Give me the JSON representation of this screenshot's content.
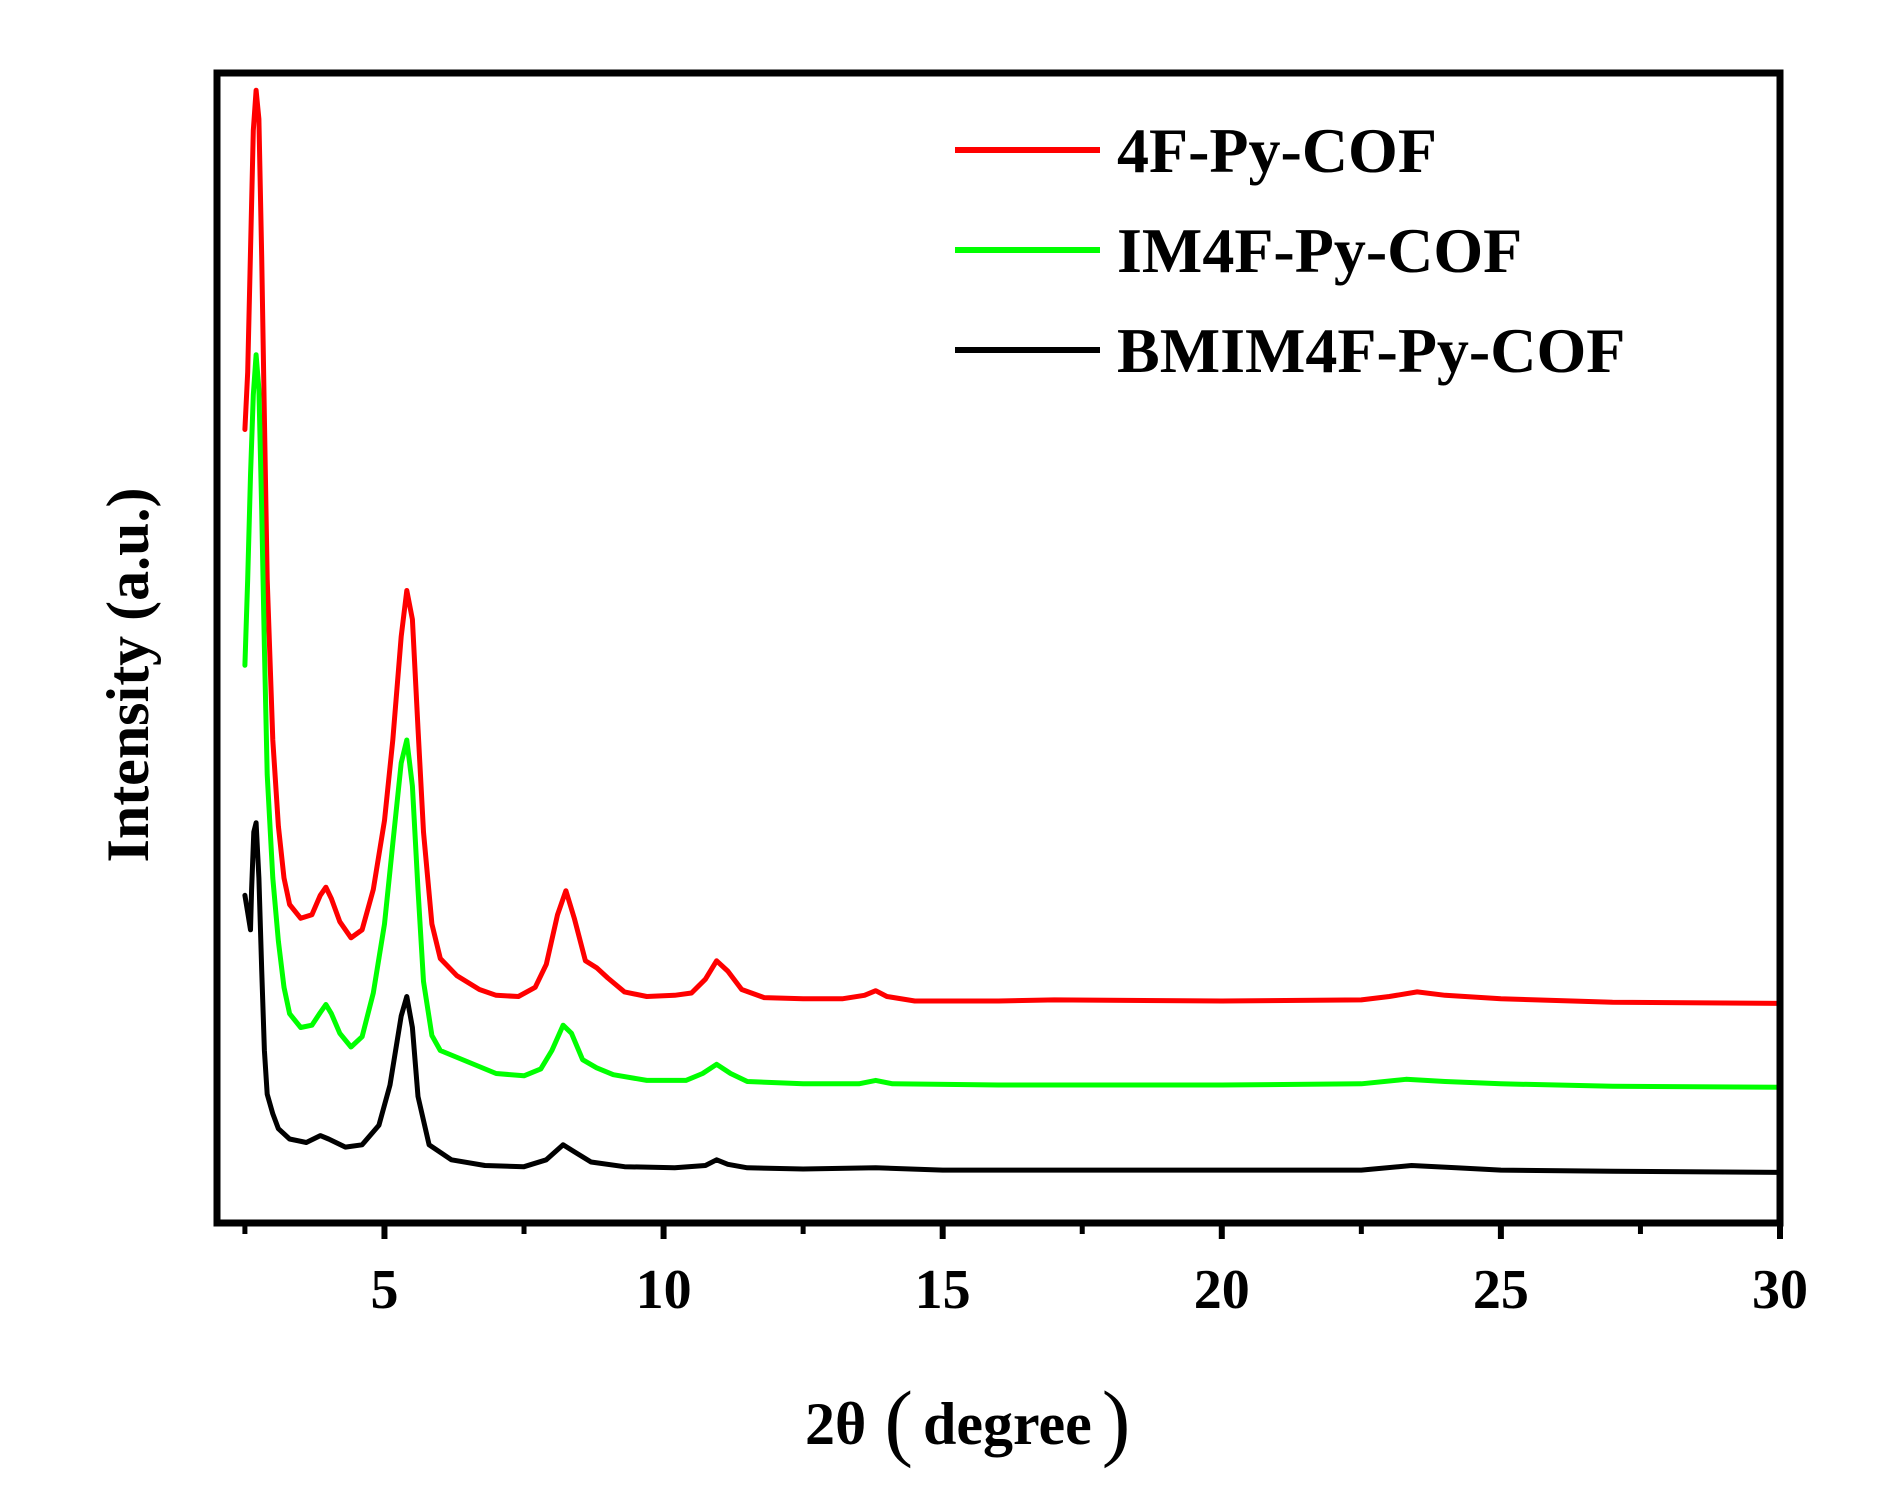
{
  "chart_data": {
    "type": "line",
    "xlabel": "2θ",
    "xlabel_unit": "degree",
    "ylabel": "Intensity (a.u.)",
    "xlim": [
      2,
      30
    ],
    "ylim": [
      0,
      1
    ],
    "x_ticks": [
      5,
      10,
      15,
      20,
      25,
      30
    ],
    "x_minor_ticks": [
      2.5,
      7.5,
      12.5,
      17.5,
      22.5,
      27.5
    ],
    "y_ticks_shown": false,
    "legend_position": "top-right",
    "grid": false,
    "series": [
      {
        "name": "4F-Py-COF",
        "color": "#ff0000",
        "points": [
          [
            2.5,
            0.69
          ],
          [
            2.55,
            0.74
          ],
          [
            2.6,
            0.845
          ],
          [
            2.65,
            0.95
          ],
          [
            2.7,
            0.985
          ],
          [
            2.75,
            0.96
          ],
          [
            2.8,
            0.84
          ],
          [
            2.85,
            0.7
          ],
          [
            2.9,
            0.56
          ],
          [
            3.0,
            0.42
          ],
          [
            3.1,
            0.345
          ],
          [
            3.2,
            0.3
          ],
          [
            3.3,
            0.277
          ],
          [
            3.5,
            0.265
          ],
          [
            3.7,
            0.268
          ],
          [
            3.85,
            0.285
          ],
          [
            3.95,
            0.292
          ],
          [
            4.05,
            0.282
          ],
          [
            4.2,
            0.262
          ],
          [
            4.4,
            0.248
          ],
          [
            4.6,
            0.255
          ],
          [
            4.8,
            0.29
          ],
          [
            5.0,
            0.35
          ],
          [
            5.15,
            0.42
          ],
          [
            5.3,
            0.51
          ],
          [
            5.4,
            0.55
          ],
          [
            5.5,
            0.525
          ],
          [
            5.6,
            0.43
          ],
          [
            5.7,
            0.34
          ],
          [
            5.85,
            0.26
          ],
          [
            6.0,
            0.23
          ],
          [
            6.3,
            0.215
          ],
          [
            6.7,
            0.203
          ],
          [
            7.0,
            0.198
          ],
          [
            7.4,
            0.197
          ],
          [
            7.7,
            0.205
          ],
          [
            7.9,
            0.225
          ],
          [
            8.1,
            0.268
          ],
          [
            8.25,
            0.289
          ],
          [
            8.4,
            0.265
          ],
          [
            8.6,
            0.228
          ],
          [
            8.8,
            0.222
          ],
          [
            9.0,
            0.213
          ],
          [
            9.3,
            0.201
          ],
          [
            9.7,
            0.197
          ],
          [
            10.2,
            0.198
          ],
          [
            10.5,
            0.2
          ],
          [
            10.75,
            0.212
          ],
          [
            10.95,
            0.228
          ],
          [
            11.15,
            0.219
          ],
          [
            11.4,
            0.203
          ],
          [
            11.8,
            0.196
          ],
          [
            12.5,
            0.195
          ],
          [
            13.2,
            0.195
          ],
          [
            13.6,
            0.198
          ],
          [
            13.8,
            0.202
          ],
          [
            14.0,
            0.197
          ],
          [
            14.5,
            0.193
          ],
          [
            16.0,
            0.193
          ],
          [
            17.0,
            0.194
          ],
          [
            20.0,
            0.193
          ],
          [
            22.5,
            0.194
          ],
          [
            23.0,
            0.197
          ],
          [
            23.5,
            0.201
          ],
          [
            24.0,
            0.198
          ],
          [
            25.0,
            0.195
          ],
          [
            27.0,
            0.192
          ],
          [
            30.0,
            0.191
          ]
        ]
      },
      {
        "name": "IM4F-Py-COF",
        "color": "#00ff00",
        "points": [
          [
            2.5,
            0.485
          ],
          [
            2.55,
            0.56
          ],
          [
            2.6,
            0.65
          ],
          [
            2.65,
            0.72
          ],
          [
            2.7,
            0.755
          ],
          [
            2.75,
            0.725
          ],
          [
            2.8,
            0.62
          ],
          [
            2.85,
            0.5
          ],
          [
            2.9,
            0.39
          ],
          [
            3.0,
            0.3
          ],
          [
            3.1,
            0.245
          ],
          [
            3.2,
            0.205
          ],
          [
            3.3,
            0.182
          ],
          [
            3.5,
            0.17
          ],
          [
            3.7,
            0.172
          ],
          [
            3.85,
            0.183
          ],
          [
            3.95,
            0.19
          ],
          [
            4.05,
            0.182
          ],
          [
            4.2,
            0.165
          ],
          [
            4.4,
            0.153
          ],
          [
            4.6,
            0.162
          ],
          [
            4.8,
            0.2
          ],
          [
            5.0,
            0.26
          ],
          [
            5.15,
            0.33
          ],
          [
            5.3,
            0.4
          ],
          [
            5.4,
            0.42
          ],
          [
            5.5,
            0.38
          ],
          [
            5.6,
            0.29
          ],
          [
            5.7,
            0.21
          ],
          [
            5.85,
            0.163
          ],
          [
            6.0,
            0.15
          ],
          [
            6.5,
            0.14
          ],
          [
            7.0,
            0.13
          ],
          [
            7.5,
            0.128
          ],
          [
            7.8,
            0.134
          ],
          [
            8.0,
            0.15
          ],
          [
            8.2,
            0.172
          ],
          [
            8.35,
            0.165
          ],
          [
            8.55,
            0.142
          ],
          [
            8.8,
            0.135
          ],
          [
            9.1,
            0.129
          ],
          [
            9.7,
            0.124
          ],
          [
            10.4,
            0.124
          ],
          [
            10.7,
            0.13
          ],
          [
            10.95,
            0.138
          ],
          [
            11.2,
            0.13
          ],
          [
            11.5,
            0.123
          ],
          [
            12.5,
            0.121
          ],
          [
            13.5,
            0.121
          ],
          [
            13.8,
            0.124
          ],
          [
            14.1,
            0.121
          ],
          [
            16.0,
            0.12
          ],
          [
            20.0,
            0.12
          ],
          [
            22.5,
            0.121
          ],
          [
            23.3,
            0.125
          ],
          [
            24.0,
            0.123
          ],
          [
            25.0,
            0.121
          ],
          [
            27.0,
            0.119
          ],
          [
            30.0,
            0.118
          ]
        ]
      },
      {
        "name": "BMIM4F-Py-COF",
        "color": "#000000",
        "points": [
          [
            2.5,
            0.285
          ],
          [
            2.55,
            0.27
          ],
          [
            2.6,
            0.255
          ],
          [
            2.62,
            0.29
          ],
          [
            2.66,
            0.34
          ],
          [
            2.7,
            0.348
          ],
          [
            2.75,
            0.3
          ],
          [
            2.8,
            0.22
          ],
          [
            2.85,
            0.15
          ],
          [
            2.9,
            0.112
          ],
          [
            3.0,
            0.095
          ],
          [
            3.1,
            0.082
          ],
          [
            3.3,
            0.073
          ],
          [
            3.6,
            0.07
          ],
          [
            3.85,
            0.076
          ],
          [
            4.0,
            0.073
          ],
          [
            4.3,
            0.066
          ],
          [
            4.6,
            0.068
          ],
          [
            4.9,
            0.085
          ],
          [
            5.1,
            0.12
          ],
          [
            5.3,
            0.18
          ],
          [
            5.4,
            0.197
          ],
          [
            5.5,
            0.17
          ],
          [
            5.6,
            0.11
          ],
          [
            5.8,
            0.068
          ],
          [
            6.2,
            0.055
          ],
          [
            6.8,
            0.05
          ],
          [
            7.5,
            0.049
          ],
          [
            7.9,
            0.055
          ],
          [
            8.2,
            0.068
          ],
          [
            8.4,
            0.062
          ],
          [
            8.7,
            0.053
          ],
          [
            9.3,
            0.049
          ],
          [
            10.2,
            0.048
          ],
          [
            10.75,
            0.05
          ],
          [
            10.95,
            0.055
          ],
          [
            11.15,
            0.051
          ],
          [
            11.5,
            0.048
          ],
          [
            12.5,
            0.047
          ],
          [
            13.8,
            0.048
          ],
          [
            15.0,
            0.046
          ],
          [
            17.5,
            0.046
          ],
          [
            20.0,
            0.046
          ],
          [
            22.5,
            0.046
          ],
          [
            23.4,
            0.05
          ],
          [
            24.2,
            0.048
          ],
          [
            25.0,
            0.046
          ],
          [
            27.0,
            0.045
          ],
          [
            30.0,
            0.044
          ]
        ]
      }
    ]
  },
  "legend": [
    {
      "label": "4F-Py-COF",
      "color": "#ff0000"
    },
    {
      "label": "IM4F-Py-COF",
      "color": "#00ff00"
    },
    {
      "label": "BMIM4F-Py-COF",
      "color": "#000000"
    }
  ],
  "axes": {
    "x_title_main": "2θ",
    "x_title_open": "(",
    "x_title_unit": "degree",
    "x_title_close": ")",
    "y_title": "Intensity (a.u.)"
  }
}
